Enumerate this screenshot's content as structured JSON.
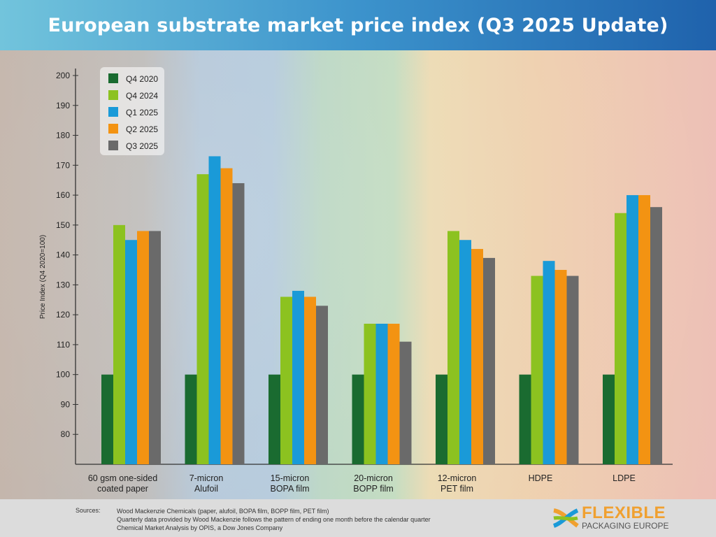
{
  "chart_data": {
    "type": "bar",
    "title": "European substrate market price index (Q3 2025 Update)",
    "ylabel": "Price Index (Q4 2020=100)",
    "xlabel": "",
    "ylim": [
      70,
      200
    ],
    "yticks": [
      80,
      90,
      100,
      110,
      120,
      130,
      140,
      150,
      160,
      170,
      180,
      190,
      200
    ],
    "grid": false,
    "legend_placement": "top-left",
    "categories": [
      [
        "60 gsm one-sided",
        "coated paper"
      ],
      [
        "7-micron",
        "Alufoil"
      ],
      [
        "15-micron",
        "BOPA film"
      ],
      [
        "20-micron",
        "BOPP film"
      ],
      [
        "12-micron",
        "PET film"
      ],
      [
        "HDPE"
      ],
      [
        "LDPE"
      ]
    ],
    "series": [
      {
        "name": "Q4 2020",
        "color": "#1a6b30",
        "values": [
          100,
          100,
          100,
          100,
          100,
          100,
          100
        ]
      },
      {
        "name": "Q4 2024",
        "color": "#8cc220",
        "values": [
          150,
          167,
          126,
          117,
          148,
          133,
          154
        ]
      },
      {
        "name": "Q1 2025",
        "color": "#1a9ad8",
        "values": [
          145,
          173,
          128,
          117,
          145,
          138,
          160
        ]
      },
      {
        "name": "Q2 2025",
        "color": "#f39312",
        "values": [
          148,
          169,
          126,
          117,
          142,
          135,
          160
        ]
      },
      {
        "name": "Q3 2025",
        "color": "#6a6a6a",
        "values": [
          148,
          164,
          123,
          111,
          139,
          133,
          156
        ]
      }
    ]
  },
  "footer": {
    "sources_label": "Sources:",
    "lines": [
      "Wood Mackenzie Chemicals (paper, alufoil, BOPA film, BOPP film, PET film)",
      "Quarterly data provided by Wood Mackenzie follows the pattern of ending one month before the calendar quarter",
      "Chemical Market Analysis by OPIS, a Dow Jones Company"
    ],
    "logo": {
      "line1": "FLEXIBLE",
      "line2": "PACKAGING EUROPE"
    }
  }
}
